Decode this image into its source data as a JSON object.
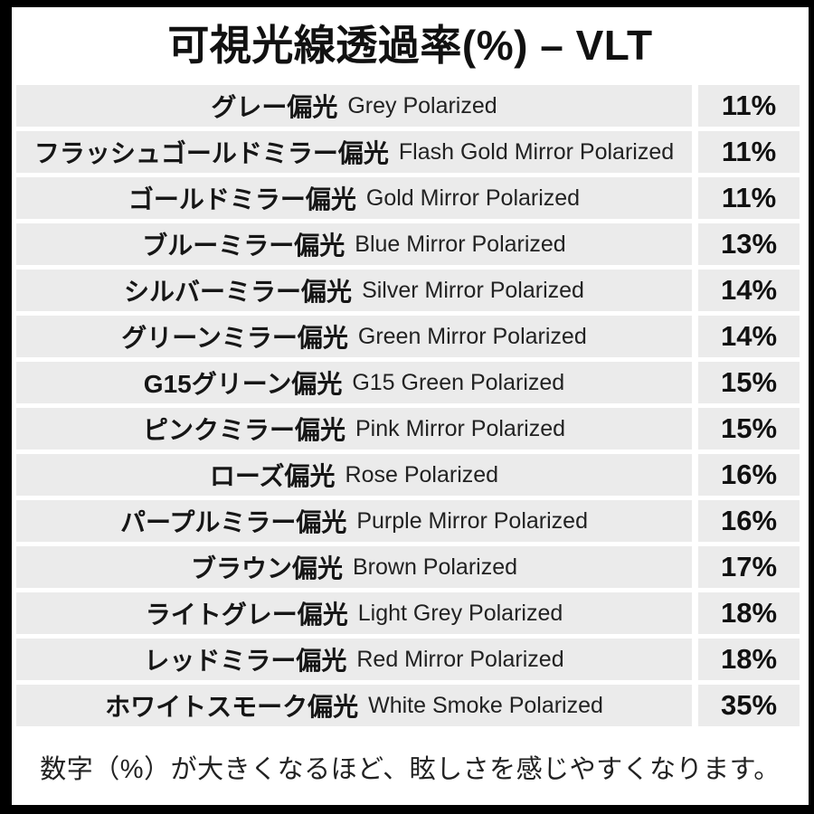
{
  "title": "可視光線透過率(%) – VLT",
  "footer_note": "数字（%）が大きくなるほど、眩しさを感じやすくなります。",
  "colors": {
    "row_background": "#ebebeb",
    "frame": "#000000",
    "text": "#1a1a1a"
  },
  "chart_data": {
    "type": "table",
    "title": "可視光線透過率(%) – VLT",
    "columns": [
      "lens_name_jp",
      "lens_name_en",
      "vlt_percent"
    ],
    "rows": [
      {
        "jp": "グレー偏光",
        "en": "Grey Polarized",
        "vlt": "11%"
      },
      {
        "jp": "フラッシュゴールドミラー偏光",
        "en": "Flash Gold Mirror Polarized",
        "vlt": "11%"
      },
      {
        "jp": "ゴールドミラー偏光",
        "en": "Gold Mirror Polarized",
        "vlt": "11%"
      },
      {
        "jp": "ブルーミラー偏光",
        "en": "Blue Mirror Polarized",
        "vlt": "13%"
      },
      {
        "jp": "シルバーミラー偏光",
        "en": "Silver Mirror Polarized",
        "vlt": "14%"
      },
      {
        "jp": "グリーンミラー偏光",
        "en": "Green Mirror Polarized",
        "vlt": "14%"
      },
      {
        "jp": "G15グリーン偏光",
        "en": "G15 Green Polarized",
        "vlt": "15%"
      },
      {
        "jp": "ピンクミラー偏光",
        "en": "Pink Mirror Polarized",
        "vlt": "15%"
      },
      {
        "jp": "ローズ偏光",
        "en": "Rose Polarized",
        "vlt": "16%"
      },
      {
        "jp": "パープルミラー偏光",
        "en": "Purple Mirror Polarized",
        "vlt": "16%"
      },
      {
        "jp": "ブラウン偏光",
        "en": "Brown Polarized",
        "vlt": "17%"
      },
      {
        "jp": "ライトグレー偏光",
        "en": "Light Grey Polarized",
        "vlt": "18%"
      },
      {
        "jp": "レッドミラー偏光",
        "en": "Red Mirror Polarized",
        "vlt": "18%"
      },
      {
        "jp": "ホワイトスモーク偏光",
        "en": "White Smoke Polarized",
        "vlt": "35%"
      }
    ]
  }
}
